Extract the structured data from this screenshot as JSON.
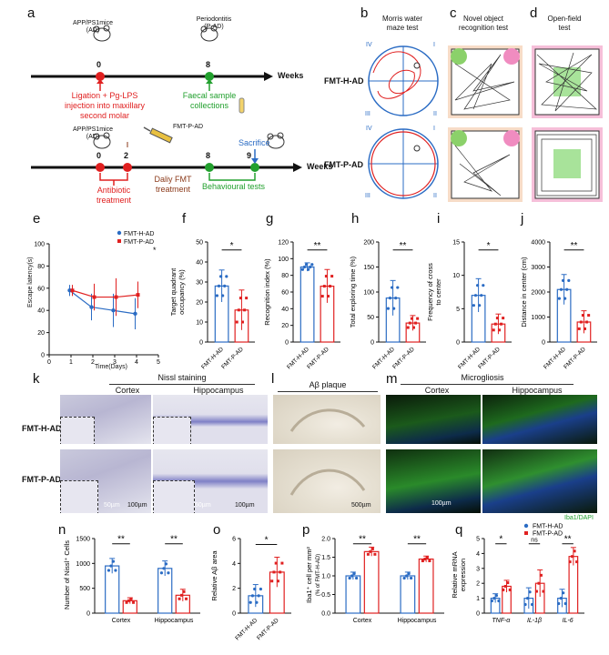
{
  "panels": {
    "a": "a",
    "b": "b",
    "c": "c",
    "d": "d",
    "e": "e",
    "f": "f",
    "g": "g",
    "h": "h",
    "i": "i",
    "j": "j",
    "k": "k",
    "l": "l",
    "m": "m",
    "n": "n",
    "o": "o",
    "p": "p",
    "q": "q"
  },
  "timeline1": {
    "mouse_label": "APP/PS1mice\n(AD)",
    "perio_label": "Periodontitis\n(P-AD)",
    "t0": "0",
    "t8": "8",
    "weeks": "Weeks",
    "ligation": "Ligation + Pg-LPS\ninjection into maxillary\nsecond molar",
    "faecal": "Faecal sample\ncollections"
  },
  "timeline2": {
    "mouse_label": "APP/PS1mice\n(AD)",
    "fmt_label": "FMT-P-AD",
    "t0": "0",
    "t2": "2",
    "t8": "8",
    "t9": "9",
    "weeks": "Weeks",
    "sacrifice": "Sacrifice",
    "antibiotic": "Antibiotic\ntreatment",
    "fmt_treat": "Daliy FMT\ntreatment",
    "behaviour": "Behavioural tests"
  },
  "tests": {
    "b_title": "Morris water\nmaze test",
    "c_title": "Novel object\nrecognition test",
    "d_title": "Open-field\ntest",
    "row1": "FMT-H-AD",
    "row2": "FMT-P-AD",
    "quads": [
      "I",
      "II",
      "III",
      "IV"
    ]
  },
  "colors": {
    "blue": "#2b6cc4",
    "red": "#e02020",
    "green": "#22a02e"
  },
  "chart_e": {
    "ylabel": "Escape latency(s)",
    "xlabel": "Time(Days)",
    "legend": [
      "FMT-H-AD",
      "FMT-P-AD"
    ],
    "star": "*",
    "xticks": [
      "0",
      "1",
      "2",
      "3",
      "4",
      "5"
    ],
    "yticks": [
      "0",
      "20",
      "40",
      "60",
      "80",
      "100"
    ]
  },
  "chart_f": {
    "ylabel": "Target quadrant\noccupancy (%)",
    "sig": "*",
    "yticks": [
      "0",
      "10",
      "20",
      "30",
      "40",
      "50"
    ],
    "cats": [
      "FMT-H-AD",
      "FMT-P-AD"
    ]
  },
  "chart_g": {
    "ylabel": "Recognition index (%)",
    "sig": "**",
    "yticks": [
      "0",
      "20",
      "40",
      "60",
      "80",
      "100",
      "120"
    ],
    "cats": [
      "FMT-H-AD",
      "FMT-P-AD"
    ]
  },
  "chart_h": {
    "ylabel": "Total exploring time (%)",
    "sig": "**",
    "yticks": [
      "0",
      "50",
      "100",
      "150",
      "200"
    ],
    "cats": [
      "FMT-H-AD",
      "FMT-P-AD"
    ]
  },
  "chart_i": {
    "ylabel": "Frequency of cross\nto  center",
    "sig": "*",
    "yticks": [
      "0",
      "5",
      "10",
      "15"
    ],
    "cats": [
      "FMT-H-AD",
      "FMT-P-AD"
    ]
  },
  "chart_j": {
    "ylabel": "Distance in center (cm)",
    "sig": "**",
    "yticks": [
      "0",
      "1000",
      "2000",
      "3000",
      "4000"
    ],
    "cats": [
      "FMT-H-AD",
      "FMT-P-AD"
    ]
  },
  "micro": {
    "nissl": "Nissl staining",
    "cortex": "Cortex",
    "hippo": "Hippocampus",
    "abeta": "Aβ plaque",
    "microgliosis": "Microgliosis",
    "row1": "FMT-H-AD",
    "row2": "FMT-P-AD",
    "s50a": "50µm",
    "s100a": "100µm",
    "s50b": "50µm",
    "s100b": "100µm",
    "s500": "500µm",
    "s100c": "100µm",
    "iba": "Iba1/DAPI"
  },
  "chart_n": {
    "ylabel": "Number of Nissl⁺ Cells",
    "sig1": "**",
    "sig2": "**",
    "cats": [
      "Cortex",
      "Hippocampus"
    ],
    "yticks": [
      "0",
      "500",
      "1000",
      "1500"
    ]
  },
  "chart_o": {
    "ylabel": "Relative Aβ area",
    "sig": "*",
    "cats": [
      "FMT-H-AD",
      "FMT-P-AD"
    ],
    "yticks": [
      "0",
      "2",
      "4",
      "6"
    ]
  },
  "chart_p": {
    "ylabel": "Iba1⁺ cell per mm²",
    "ylabel2": "(% of FMT-H-AD)",
    "sig1": "**",
    "sig2": "**",
    "cats": [
      "Cortex",
      "Hippocampus"
    ],
    "yticks": [
      "0.0",
      "0.5",
      "1.0",
      "1.5",
      "2.0"
    ]
  },
  "chart_q": {
    "ylabel": "Relative mRNA\nexpression",
    "sig1": "*",
    "sig2": "ns",
    "sig3": "**",
    "cats": [
      "TNF-α",
      "IL-1β",
      "IL-6"
    ],
    "yticks": [
      "0",
      "1",
      "2",
      "3",
      "4",
      "5"
    ],
    "legend": [
      "FMT-H-AD",
      "FMT-P-AD"
    ]
  },
  "chart_data": [
    {
      "type": "line",
      "title": "e",
      "xlabel": "Time(Days)",
      "ylabel": "Escape latency(s)",
      "x": [
        1,
        2,
        3,
        4
      ],
      "xlim": [
        0,
        5
      ],
      "ylim": [
        0,
        100
      ],
      "series": [
        {
          "name": "FMT-H-AD",
          "values": [
            58,
            43,
            40,
            37
          ],
          "err": [
            5,
            12,
            15,
            14
          ]
        },
        {
          "name": "FMT-P-AD",
          "values": [
            58,
            52,
            52,
            54
          ],
          "err": [
            5,
            12,
            17,
            12
          ]
        }
      ]
    },
    {
      "type": "bar",
      "title": "f",
      "ylabel": "Target quadrant occupancy (%)",
      "categories": [
        "FMT-H-AD",
        "FMT-P-AD"
      ],
      "values": [
        28,
        16
      ],
      "err": [
        8,
        10
      ],
      "ylim": [
        0,
        50
      ]
    },
    {
      "type": "bar",
      "title": "g",
      "ylabel": "Recognition index (%)",
      "categories": [
        "FMT-H-AD",
        "FMT-P-AD"
      ],
      "values": [
        90,
        67
      ],
      "err": [
        5,
        20
      ],
      "ylim": [
        0,
        120
      ]
    },
    {
      "type": "bar",
      "title": "h",
      "ylabel": "Total exploring time (%)",
      "categories": [
        "FMT-H-AD",
        "FMT-P-AD"
      ],
      "values": [
        88,
        38
      ],
      "err": [
        35,
        15
      ],
      "ylim": [
        0,
        200
      ]
    },
    {
      "type": "bar",
      "title": "i",
      "ylabel": "Frequency of cross to center",
      "categories": [
        "FMT-H-AD",
        "FMT-P-AD"
      ],
      "values": [
        7,
        2.7
      ],
      "err": [
        2.5,
        1.5
      ],
      "ylim": [
        0,
        15
      ]
    },
    {
      "type": "bar",
      "title": "j",
      "ylabel": "Distance in center (cm)",
      "categories": [
        "FMT-H-AD",
        "FMT-P-AD"
      ],
      "values": [
        2100,
        800
      ],
      "err": [
        600,
        450
      ],
      "ylim": [
        0,
        4000
      ]
    },
    {
      "type": "bar",
      "title": "n",
      "ylabel": "Number of Nissl+ Cells",
      "categories": [
        "Cortex",
        "Hippocampus"
      ],
      "series": [
        {
          "name": "FMT-H-AD",
          "values": [
            950,
            900
          ],
          "err": [
            150,
            150
          ]
        },
        {
          "name": "FMT-P-AD",
          "values": [
            250,
            360
          ],
          "err": [
            60,
            120
          ]
        }
      ],
      "ylim": [
        0,
        1500
      ]
    },
    {
      "type": "bar",
      "title": "o",
      "ylabel": "Relative Aβ area",
      "categories": [
        "FMT-H-AD",
        "FMT-P-AD"
      ],
      "values": [
        1.4,
        3.3
      ],
      "err": [
        0.9,
        1.2
      ],
      "ylim": [
        0,
        6
      ]
    },
    {
      "type": "bar",
      "title": "p",
      "ylabel": "Iba1+ cell per mm² (% of FMT-H-AD)",
      "categories": [
        "Cortex",
        "Hippocampus"
      ],
      "series": [
        {
          "name": "FMT-H-AD",
          "values": [
            1.0,
            1.0
          ],
          "err": [
            0.1,
            0.1
          ]
        },
        {
          "name": "FMT-P-AD",
          "values": [
            1.65,
            1.45
          ],
          "err": [
            0.12,
            0.08
          ]
        }
      ],
      "ylim": [
        0,
        2.0
      ]
    },
    {
      "type": "bar",
      "title": "q",
      "ylabel": "Relative mRNA expression",
      "categories": [
        "TNF-α",
        "IL-1β",
        "IL-6"
      ],
      "series": [
        {
          "name": "FMT-H-AD",
          "values": [
            1.0,
            1.0,
            1.0
          ],
          "err": [
            0.3,
            0.7,
            0.6
          ]
        },
        {
          "name": "FMT-P-AD",
          "values": [
            1.8,
            2.0,
            3.8
          ],
          "err": [
            0.4,
            0.9,
            0.6
          ]
        }
      ],
      "ylim": [
        0,
        5
      ]
    }
  ]
}
